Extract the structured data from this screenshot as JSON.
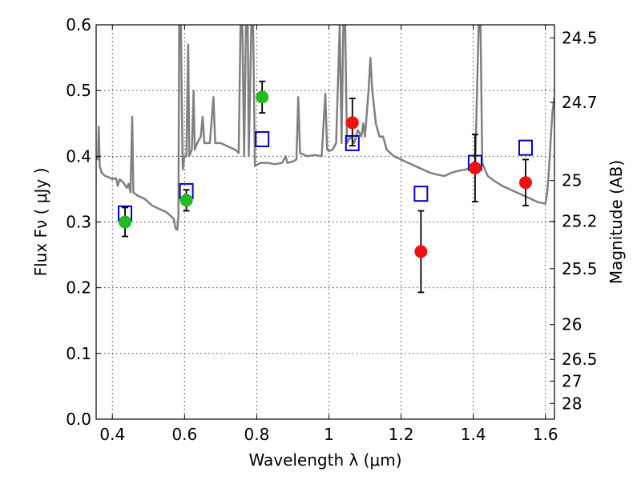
{
  "chart_data": {
    "type": "scatter",
    "xlabel": "Wavelength  λ (μm)",
    "ylabel": "Flux  Fν  ( μJy )",
    "ylabel_right": "Magnitude (AB)",
    "xlim": [
      0.355,
      1.625
    ],
    "ylim": [
      0.0,
      0.6
    ],
    "grid": true,
    "x_ticks": [
      0.4,
      0.6,
      0.8,
      1.0,
      1.2,
      1.4,
      1.6
    ],
    "x_tick_labels": [
      "0.4",
      "0.6",
      "0.8",
      "1",
      "1.2",
      "1.4",
      "1.6"
    ],
    "y_ticks": [
      0.0,
      0.1,
      0.2,
      0.3,
      0.4,
      0.5,
      0.6
    ],
    "y_tick_labels": [
      "0.0",
      "0.1",
      "0.2",
      "0.3",
      "0.4",
      "0.5",
      "0.6"
    ],
    "right_axis": {
      "ticks": [
        {
          "flux": 0.58,
          "label": "24.5"
        },
        {
          "flux": 0.482,
          "label": "24.7"
        },
        {
          "flux": 0.363,
          "label": "25"
        },
        {
          "flux": 0.301,
          "label": "25.2"
        },
        {
          "flux": 0.229,
          "label": "25.5"
        },
        {
          "flux": 0.144,
          "label": "26"
        },
        {
          "flux": 0.091,
          "label": "26.5"
        },
        {
          "flux": 0.058,
          "label": "27"
        },
        {
          "flux": 0.024,
          "label": "28"
        }
      ]
    },
    "series": [
      {
        "kind": "line",
        "color": "#808080",
        "points": [
          [
            0.355,
            0.4
          ],
          [
            0.36,
            0.395
          ],
          [
            0.362,
            0.445
          ],
          [
            0.365,
            0.385
          ],
          [
            0.37,
            0.375
          ],
          [
            0.38,
            0.37
          ],
          [
            0.39,
            0.368
          ],
          [
            0.4,
            0.365
          ],
          [
            0.41,
            0.367
          ],
          [
            0.415,
            0.355
          ],
          [
            0.42,
            0.365
          ],
          [
            0.43,
            0.36
          ],
          [
            0.44,
            0.352
          ],
          [
            0.445,
            0.358
          ],
          [
            0.45,
            0.345
          ],
          [
            0.455,
            0.46
          ],
          [
            0.458,
            0.345
          ],
          [
            0.47,
            0.34
          ],
          [
            0.49,
            0.335
          ],
          [
            0.51,
            0.325
          ],
          [
            0.53,
            0.32
          ],
          [
            0.55,
            0.315
          ],
          [
            0.57,
            0.305
          ],
          [
            0.575,
            0.29
          ],
          [
            0.58,
            0.288
          ],
          [
            0.583,
            0.31
          ],
          [
            0.585,
            0.6
          ],
          [
            0.59,
            0.6
          ],
          [
            0.592,
            0.5
          ],
          [
            0.595,
            0.38
          ],
          [
            0.6,
            0.4
          ],
          [
            0.605,
            0.4
          ],
          [
            0.61,
            0.57
          ],
          [
            0.613,
            0.4
          ],
          [
            0.62,
            0.41
          ],
          [
            0.625,
            0.5
          ],
          [
            0.628,
            0.41
          ],
          [
            0.635,
            0.42
          ],
          [
            0.645,
            0.43
          ],
          [
            0.65,
            0.46
          ],
          [
            0.655,
            0.42
          ],
          [
            0.67,
            0.42
          ],
          [
            0.68,
            0.49
          ],
          [
            0.685,
            0.42
          ],
          [
            0.7,
            0.42
          ],
          [
            0.72,
            0.415
          ],
          [
            0.74,
            0.41
          ],
          [
            0.75,
            0.405
          ],
          [
            0.755,
            0.6
          ],
          [
            0.76,
            0.6
          ],
          [
            0.765,
            0.4
          ],
          [
            0.77,
            0.6
          ],
          [
            0.775,
            0.6
          ],
          [
            0.778,
            0.4
          ],
          [
            0.785,
            0.6
          ],
          [
            0.79,
            0.6
          ],
          [
            0.795,
            0.385
          ],
          [
            0.81,
            0.39
          ],
          [
            0.83,
            0.39
          ],
          [
            0.85,
            0.388
          ],
          [
            0.87,
            0.39
          ],
          [
            0.88,
            0.4
          ],
          [
            0.885,
            0.39
          ],
          [
            0.9,
            0.392
          ],
          [
            0.91,
            0.395
          ],
          [
            0.915,
            0.49
          ],
          [
            0.92,
            0.405
          ],
          [
            0.94,
            0.4
          ],
          [
            0.96,
            0.402
          ],
          [
            0.98,
            0.4
          ],
          [
            0.99,
            0.495
          ],
          [
            0.995,
            0.41
          ],
          [
            1.0,
            0.408
          ],
          [
            1.01,
            0.41
          ],
          [
            1.02,
            0.42
          ],
          [
            1.03,
            0.6
          ],
          [
            1.035,
            0.42
          ],
          [
            1.04,
            0.6
          ],
          [
            1.045,
            0.6
          ],
          [
            1.05,
            0.42
          ],
          [
            1.06,
            0.43
          ],
          [
            1.07,
            0.42
          ],
          [
            1.08,
            0.44
          ],
          [
            1.09,
            0.43
          ],
          [
            1.095,
            0.45
          ],
          [
            1.1,
            0.43
          ],
          [
            1.11,
            0.5
          ],
          [
            1.115,
            0.55
          ],
          [
            1.12,
            0.5
          ],
          [
            1.13,
            0.45
          ],
          [
            1.14,
            0.43
          ],
          [
            1.15,
            0.43
          ],
          [
            1.16,
            0.41
          ],
          [
            1.18,
            0.4
          ],
          [
            1.2,
            0.395
          ],
          [
            1.22,
            0.39
          ],
          [
            1.24,
            0.385
          ],
          [
            1.26,
            0.38
          ],
          [
            1.28,
            0.375
          ],
          [
            1.3,
            0.372
          ],
          [
            1.32,
            0.37
          ],
          [
            1.34,
            0.375
          ],
          [
            1.36,
            0.378
          ],
          [
            1.38,
            0.38
          ],
          [
            1.4,
            0.385
          ],
          [
            1.405,
            0.375
          ],
          [
            1.415,
            0.6
          ],
          [
            1.42,
            0.6
          ],
          [
            1.425,
            0.39
          ],
          [
            1.44,
            0.37
          ],
          [
            1.46,
            0.362
          ],
          [
            1.48,
            0.355
          ],
          [
            1.5,
            0.35
          ],
          [
            1.52,
            0.345
          ],
          [
            1.54,
            0.34
          ],
          [
            1.56,
            0.335
          ],
          [
            1.58,
            0.33
          ],
          [
            1.6,
            0.328
          ],
          [
            1.605,
            0.345
          ],
          [
            1.61,
            0.38
          ],
          [
            1.615,
            0.43
          ],
          [
            1.62,
            0.47
          ],
          [
            1.625,
            0.49
          ]
        ]
      },
      {
        "kind": "open-square",
        "color": "#0000cc",
        "points": [
          [
            0.435,
            0.313
          ],
          [
            0.605,
            0.347
          ],
          [
            0.815,
            0.426
          ],
          [
            1.065,
            0.42
          ],
          [
            1.255,
            0.343
          ],
          [
            1.405,
            0.39
          ],
          [
            1.545,
            0.413
          ]
        ]
      },
      {
        "kind": "filled-circle",
        "color": "#22bb22",
        "points": [
          {
            "x": 0.435,
            "y": 0.3,
            "err_low": 0.022,
            "err_high": 0.022
          },
          {
            "x": 0.605,
            "y": 0.333,
            "err_low": 0.016,
            "err_high": 0.016
          },
          {
            "x": 0.815,
            "y": 0.49,
            "err_low": 0.024,
            "err_high": 0.024
          }
        ]
      },
      {
        "kind": "filled-circle",
        "color": "#ee1111",
        "points": [
          {
            "x": 1.065,
            "y": 0.451,
            "err_low": 0.035,
            "err_high": 0.037
          },
          {
            "x": 1.255,
            "y": 0.255,
            "err_low": 0.062,
            "err_high": 0.062
          },
          {
            "x": 1.405,
            "y": 0.382,
            "err_low": 0.051,
            "err_high": 0.051
          },
          {
            "x": 1.545,
            "y": 0.36,
            "err_low": 0.035,
            "err_high": 0.035
          }
        ]
      }
    ]
  }
}
